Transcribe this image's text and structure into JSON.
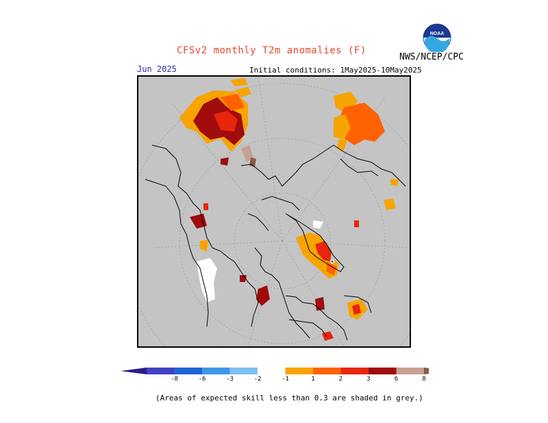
{
  "header": {
    "title": "CFSv2 monthly T2m anomalies (F)",
    "org": "NWS/NCEP/CPC",
    "month": "Jun 2025",
    "initial_conditions": "Initial conditions: 1May2025-10May2025"
  },
  "logo": {
    "name": "noaa-logo",
    "text": "NOAA"
  },
  "map": {
    "projection": "north-polar-stereographic",
    "background_color": "#c4c4c4",
    "land_outline_color": "#000000"
  },
  "colorbar": {
    "ticks": [
      "-8",
      "-6",
      "-3",
      "-2",
      "-1",
      "1",
      "2",
      "3",
      "6",
      "8"
    ],
    "colors": [
      "#2a1c8c",
      "#4141c6",
      "#1f64d6",
      "#3e98ea",
      "#7ec0f2",
      "#ffffff",
      "#f7a400",
      "#ff6200",
      "#e8260e",
      "#a00c0c",
      "#c8a090",
      "#8a5a48"
    ]
  },
  "footnote": "(Areas of expected skill less than 0.3 are shaded in grey.)"
}
